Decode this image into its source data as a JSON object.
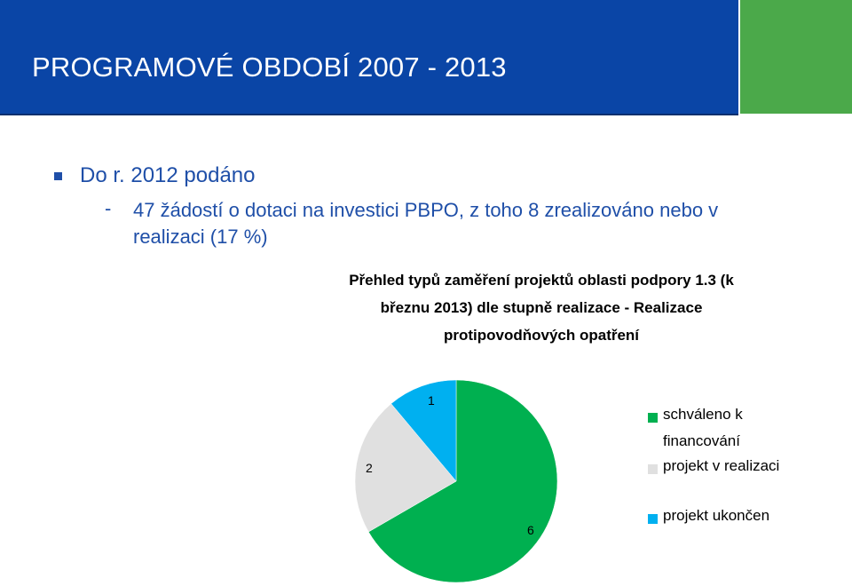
{
  "header": {
    "title": "PROGRAMOVÉ  OBDOBÍ 2007 - 2013",
    "bar_color": "#0a45a6",
    "accent_color": "#4ba94a"
  },
  "content": {
    "bullet": "Do r. 2012 podáno",
    "sub_dash": "-",
    "sub_text": "47 žádostí o dotaci na investici PBPO, z toho 8 zrealizováno nebo v realizaci (17 %)"
  },
  "chart_data": {
    "type": "pie",
    "title_lines": [
      "Přehled typů zaměření projektů oblasti podpory 1.3 (k",
      "březnu  2013) dle stupně realizace - Realizace",
      "protipovodňových opatření"
    ],
    "slices": [
      {
        "name": "schváleno k financování",
        "value": 6,
        "color": "#00b050"
      },
      {
        "name": "projekt v realizaci",
        "value": 2,
        "color": "#e0e0e0"
      },
      {
        "name": "projekt ukončen",
        "value": 1,
        "color": "#00b0f0"
      }
    ],
    "legend_lines": [
      [
        "schváleno k",
        "financování"
      ],
      [
        "projekt v realizaci"
      ],
      [
        "projekt ukončen"
      ]
    ],
    "legend_position": "right"
  }
}
